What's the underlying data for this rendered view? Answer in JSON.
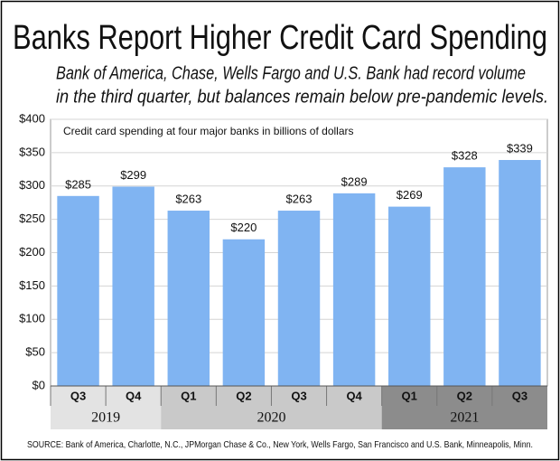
{
  "chart_data": {
    "type": "bar",
    "title": "Banks Report Higher Credit Card Spending",
    "subtitle": [
      "Bank of America, Chase, Wells Fargo and U.S. Bank had record volume",
      "in the third quarter, but balances remain below pre-pandemic levels."
    ],
    "annotation": "Credit card spending at four major banks in billions of dollars",
    "source": "SOURCE: Bank of America, Charlotte, N.C., JPMorgan Chase & Co., New York, Wells Fargo, San Francisco and U.S. Bank, Minneapolis, Minn.",
    "categories": [
      "Q3",
      "Q4",
      "Q1",
      "Q2",
      "Q3",
      "Q4",
      "Q1",
      "Q2",
      "Q3"
    ],
    "groups": [
      {
        "name": "2019",
        "count": 2,
        "color": "#e3e3e3"
      },
      {
        "name": "2020",
        "count": 4,
        "color": "#c9c9c9"
      },
      {
        "name": "2021",
        "count": 3,
        "color": "#8c8c8c"
      }
    ],
    "values": [
      285,
      299,
      263,
      220,
      263,
      289,
      269,
      328,
      339
    ],
    "value_labels": [
      "$285",
      "$299",
      "$263",
      "$220",
      "$263",
      "$289",
      "$269",
      "$328",
      "$339"
    ],
    "color": "#80b4f2",
    "ylim": [
      0,
      400
    ],
    "yticks": [
      {
        "value": 0,
        "label": "$0"
      },
      {
        "value": 50,
        "label": "$50"
      },
      {
        "value": 100,
        "label": "$100"
      },
      {
        "value": 150,
        "label": "$150"
      },
      {
        "value": 200,
        "label": "$200"
      },
      {
        "value": 250,
        "label": "$250"
      },
      {
        "value": 300,
        "label": "$300"
      },
      {
        "value": 350,
        "label": "$350"
      },
      {
        "value": 400,
        "label": "$400"
      }
    ],
    "grid": true
  }
}
